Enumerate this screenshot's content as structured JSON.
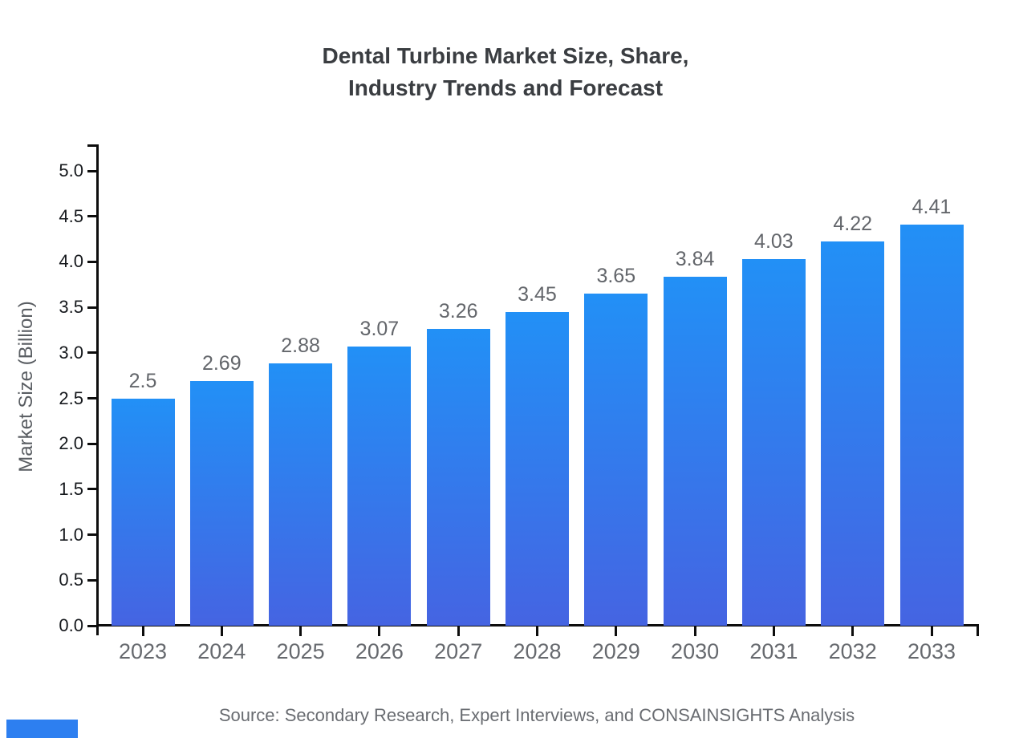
{
  "title": {
    "line1": "Dental Turbine Market Size, Share,",
    "line2": "Industry Trends and Forecast"
  },
  "source": "Source: Secondary Research, Expert Interviews, and CONSAINSIGHTS Analysis",
  "colors": {
    "bar_gradient_top": "#2290f6",
    "bar_gradient_bottom": "#4564e2",
    "axis": "#0d0d0d",
    "brand": "#2d7ff0",
    "title_text": "#3a3d41",
    "label_gray": "#66696e"
  },
  "chart_data": {
    "type": "bar",
    "title": "Dental Turbine Market Size, Share, Industry Trends and Forecast",
    "categories": [
      "2023",
      "2024",
      "2025",
      "2026",
      "2027",
      "2028",
      "2029",
      "2030",
      "2031",
      "2032",
      "2033"
    ],
    "values": [
      2.5,
      2.69,
      2.88,
      3.07,
      3.26,
      3.45,
      3.65,
      3.84,
      4.03,
      4.22,
      4.41
    ],
    "value_labels": [
      "2.5",
      "2.69",
      "2.88",
      "3.07",
      "3.26",
      "3.45",
      "3.65",
      "3.84",
      "4.03",
      "4.22",
      "4.41"
    ],
    "xlabel": "",
    "ylabel": "Market Size (Billion)",
    "ylim": [
      0,
      5.0
    ],
    "ytick_step": 0.5,
    "yticks": [
      "0.0",
      "0.5",
      "1.0",
      "1.5",
      "2.0",
      "2.5",
      "3.0",
      "3.5",
      "4.0",
      "4.5",
      "5.0"
    ],
    "grid": false,
    "legend": false,
    "bar_color_gradient": [
      "#2290f6",
      "#4564e2"
    ]
  }
}
